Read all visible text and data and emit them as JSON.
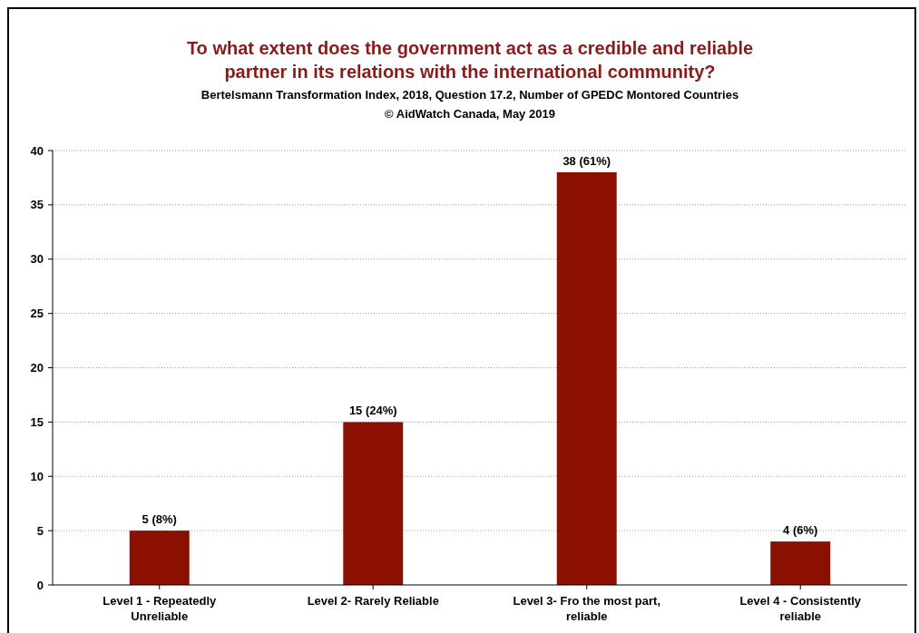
{
  "chart_data": {
    "type": "bar",
    "title": "To what extent does the government act as a credible and reliable partner in its relations with the international community?",
    "subtitle": "Bertelsmann Transformation Index, 2018, Question 17.2, Number of GPEDC Montored Countries",
    "annotations": [
      "© AidWatch Canada, May 2019"
    ],
    "categories": [
      "Level 1 - Repeatedly Unreliable",
      "Level 2- Rarely Reliable",
      "Level 3- Fro the most part, reliable",
      "Level 4 - Consistently reliable"
    ],
    "values": [
      5,
      15,
      38,
      4
    ],
    "value_labels": [
      "5 (8%)",
      "15 (24%)",
      "38 (61%)",
      "4 (6%)"
    ],
    "color": "#8b1000",
    "ylim": [
      0,
      40
    ],
    "yticks": [
      0,
      5,
      10,
      15,
      20,
      25,
      30,
      35,
      40
    ],
    "grid": "y",
    "line_style": "dotted"
  }
}
